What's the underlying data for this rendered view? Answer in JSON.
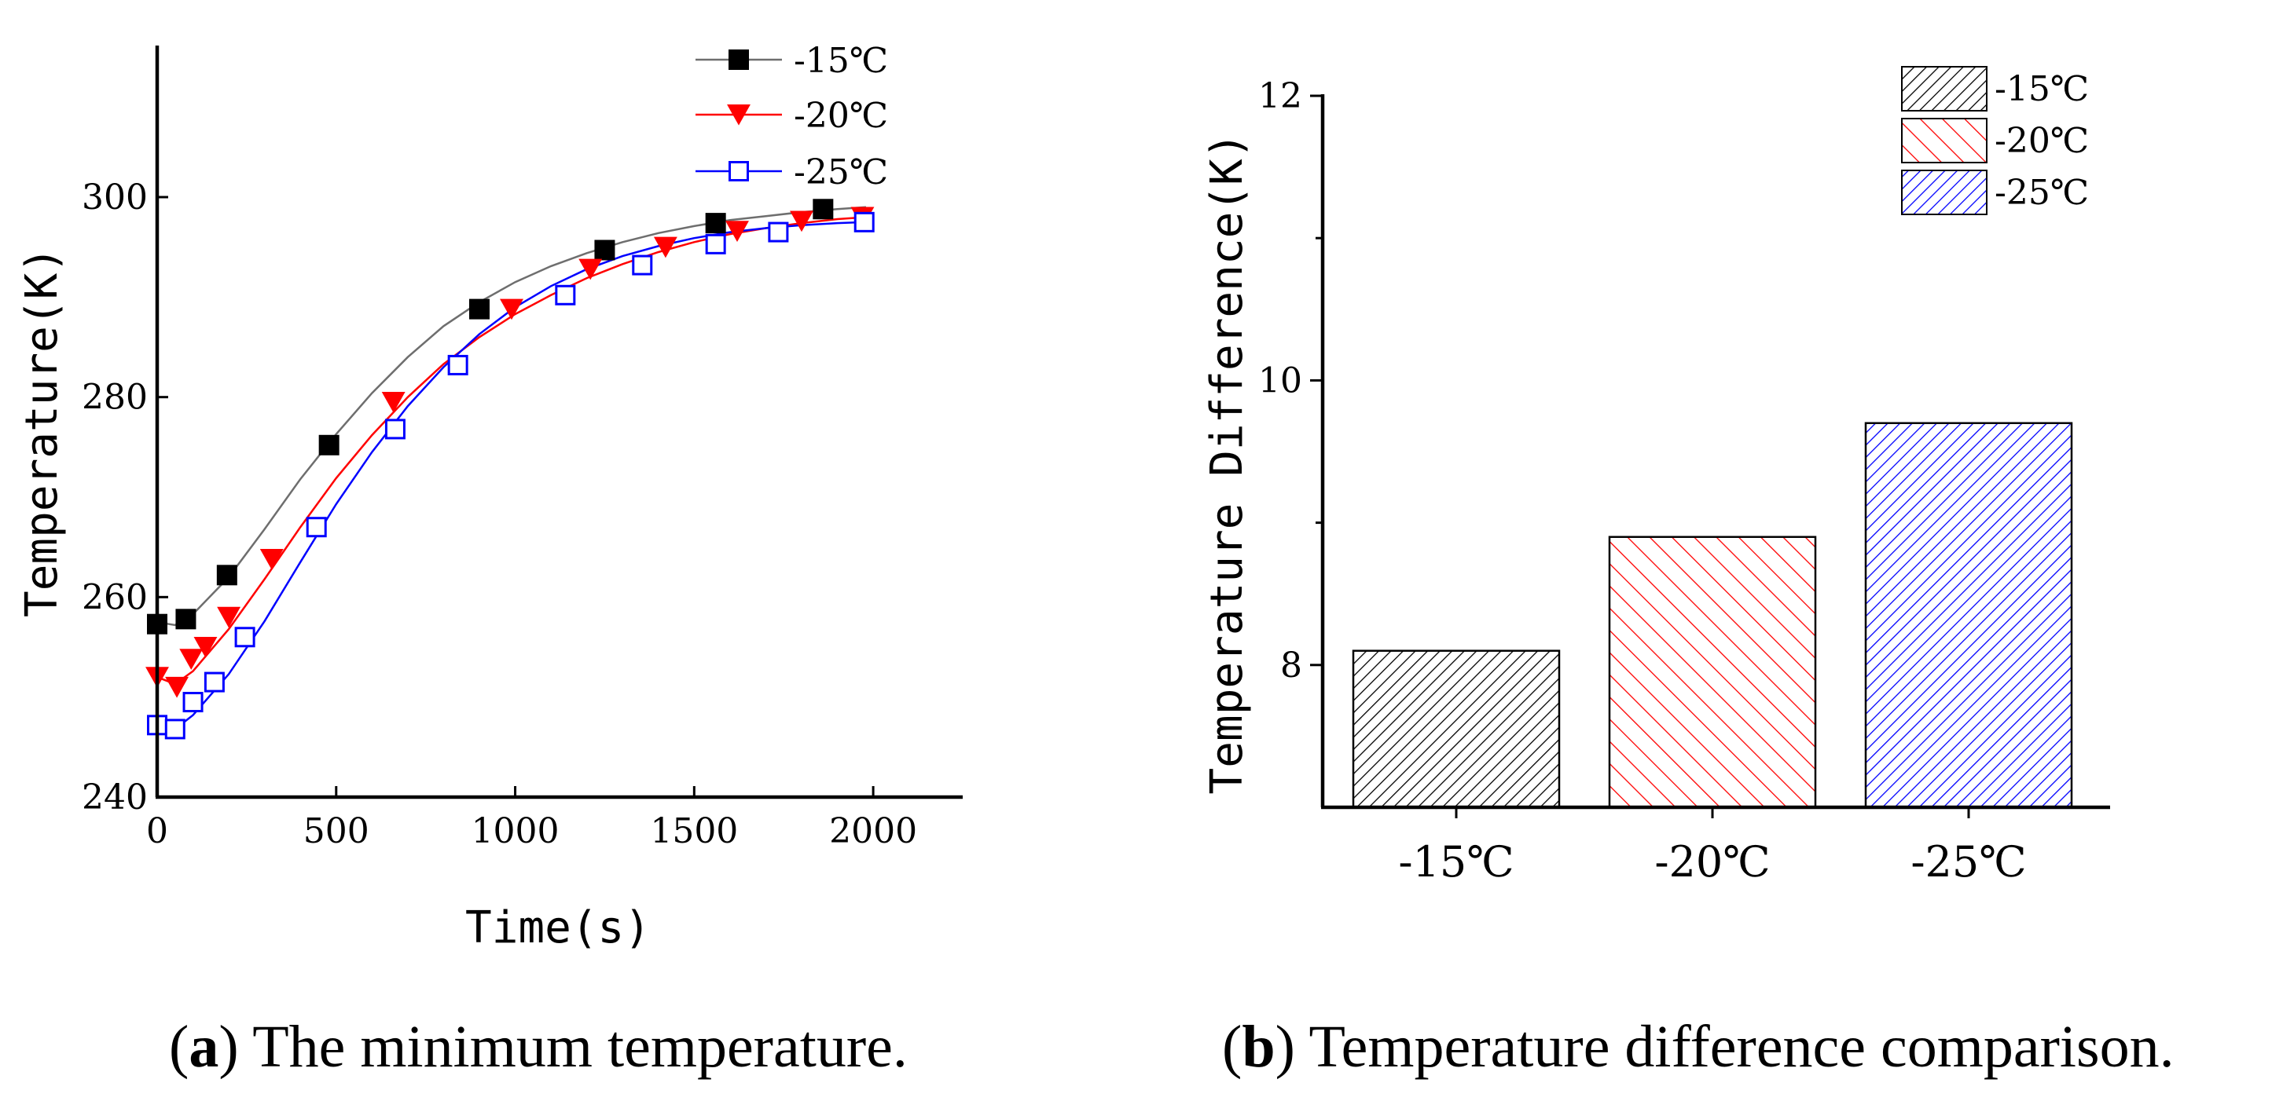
{
  "chart_data": [
    {
      "type": "line",
      "caption_letter": "a",
      "caption_text": "The minimum temperature.",
      "xlabel": "Time(s)",
      "ylabel": "Temperature(K)",
      "xlim": [
        0,
        2250
      ],
      "ylim": [
        240,
        315
      ],
      "xticks": [
        0,
        500,
        1000,
        1500,
        2000
      ],
      "yticks": [
        240,
        260,
        280,
        300
      ],
      "series": [
        {
          "name": "-15℃",
          "color": "#000000",
          "line_color": "#6e6e6e",
          "marker": "square-filled",
          "x": [
            0,
            80,
            195,
            480,
            900,
            1250,
            1560,
            1860
          ],
          "y": [
            257.3,
            257.8,
            262.2,
            275.2,
            288.8,
            294.7,
            297.4,
            298.8
          ],
          "curve_x": [
            0,
            50,
            100,
            200,
            300,
            400,
            500,
            600,
            700,
            800,
            900,
            1000,
            1100,
            1200,
            1300,
            1400,
            1500,
            1600,
            1700,
            1800,
            1900,
            1980
          ],
          "curve_y": [
            257.5,
            257.2,
            258.3,
            262.0,
            266.8,
            271.8,
            276.3,
            280.4,
            284.0,
            287.1,
            289.5,
            291.5,
            293.1,
            294.4,
            295.5,
            296.4,
            297.1,
            297.7,
            298.1,
            298.5,
            298.8,
            299.0
          ]
        },
        {
          "name": "-20℃",
          "color": "#ff0000",
          "line_color": "#ff0000",
          "marker": "triangle-down-filled",
          "x": [
            0,
            55,
            95,
            135,
            200,
            320,
            660,
            990,
            1210,
            1420,
            1620,
            1800,
            1970
          ],
          "y": [
            252.0,
            251.0,
            253.8,
            255.0,
            258.0,
            263.8,
            279.5,
            288.8,
            292.8,
            295.0,
            296.6,
            297.6,
            298.0
          ],
          "curve_x": [
            0,
            50,
            100,
            200,
            300,
            400,
            500,
            600,
            700,
            800,
            900,
            1000,
            1100,
            1200,
            1300,
            1400,
            1500,
            1600,
            1700,
            1800,
            1900,
            1980
          ],
          "curve_y": [
            252.0,
            251.3,
            252.6,
            256.8,
            261.8,
            267.0,
            271.9,
            276.2,
            280.0,
            283.3,
            286.0,
            288.3,
            290.2,
            291.9,
            293.3,
            294.5,
            295.5,
            296.3,
            296.9,
            297.4,
            297.8,
            298.0
          ]
        },
        {
          "name": "-25℃",
          "color": "#0000ff",
          "line_color": "#0000ff",
          "marker": "square-open",
          "x": [
            0,
            50,
            100,
            160,
            245,
            445,
            665,
            840,
            1140,
            1355,
            1560,
            1735,
            1975
          ],
          "y": [
            247.2,
            246.8,
            249.5,
            251.5,
            256.0,
            267.0,
            276.8,
            283.2,
            290.2,
            293.2,
            295.3,
            296.5,
            297.5
          ],
          "curve_x": [
            0,
            50,
            100,
            200,
            300,
            400,
            500,
            600,
            700,
            800,
            900,
            1000,
            1100,
            1200,
            1300,
            1400,
            1500,
            1600,
            1700,
            1800,
            1900,
            1980
          ],
          "curve_y": [
            247.5,
            246.8,
            248.2,
            252.3,
            257.6,
            263.5,
            269.3,
            274.5,
            279.1,
            283.0,
            286.3,
            289.0,
            291.1,
            292.8,
            294.1,
            295.1,
            295.9,
            296.5,
            296.9,
            297.2,
            297.4,
            297.5
          ]
        }
      ],
      "legend": "top-right"
    },
    {
      "type": "bar",
      "caption_letter": "b",
      "caption_text": "Temperature difference comparison.",
      "ylabel": "Temperature Difference(K)",
      "categories": [
        "-15℃",
        "-20℃",
        "-25℃"
      ],
      "values": [
        8.1,
        8.9,
        9.7
      ],
      "colors": [
        "#000000",
        "#ff0000",
        "#0000ff"
      ],
      "hatch": [
        "diagonal-right",
        "diagonal-left",
        "diagonal-right"
      ],
      "ylim": [
        7.0,
        12.0
      ],
      "yticks": [
        8,
        10,
        12
      ],
      "legend": "top-right"
    }
  ]
}
